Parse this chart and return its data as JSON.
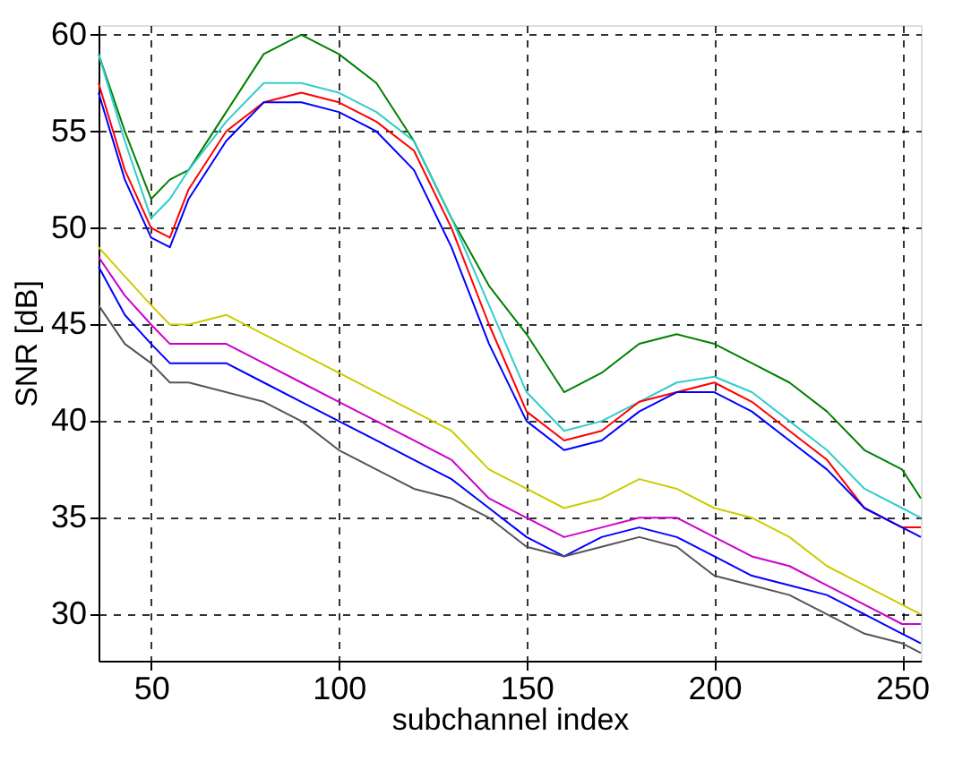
{
  "chart_data": {
    "type": "line",
    "xlabel": "subchannel index",
    "ylabel": "SNR [dB]",
    "x": [
      36,
      43,
      50,
      55,
      60,
      70,
      80,
      90,
      100,
      110,
      120,
      130,
      140,
      150,
      160,
      170,
      180,
      190,
      200,
      210,
      220,
      230,
      240,
      250,
      255
    ],
    "xlim": [
      36,
      255
    ],
    "xticks": [
      50,
      100,
      150,
      200,
      250
    ],
    "ylim": [
      27.6,
      60.5
    ],
    "yticks": [
      30,
      35,
      40,
      45,
      50,
      55,
      60
    ],
    "grid": true,
    "line_style": "solid",
    "marker": "none",
    "series": [
      {
        "color": "#008000",
        "values": [
          59,
          55,
          51.5,
          52.5,
          53,
          56,
          59,
          60,
          59,
          57.5,
          54.5,
          50.5,
          47,
          44.5,
          41.5,
          42.5,
          44,
          44.5,
          44,
          43,
          42,
          40.5,
          38.5,
          37.5,
          36
        ]
      },
      {
        "color": "#33cccc",
        "values": [
          59,
          54.5,
          50.5,
          51.5,
          53,
          55.5,
          57.5,
          57.5,
          57,
          56,
          54.5,
          50.5,
          46,
          41.5,
          39.5,
          40,
          41,
          42,
          42.3,
          41.5,
          40,
          38.5,
          36.5,
          35.5,
          35
        ]
      },
      {
        "color": "#ff0000",
        "values": [
          57.5,
          53,
          50,
          49.5,
          52,
          55,
          56.5,
          57,
          56.5,
          55.5,
          54,
          50,
          45,
          40.5,
          39,
          39.5,
          41,
          41.5,
          42,
          41,
          39.5,
          38,
          35.5,
          34.5,
          34.5
        ]
      },
      {
        "color": "#0000ff",
        "values": [
          57,
          52.5,
          49.5,
          49,
          51.5,
          54.5,
          56.5,
          56.5,
          56,
          55,
          53,
          49,
          44,
          40,
          38.5,
          39,
          40.5,
          41.5,
          41.5,
          40.5,
          39,
          37.5,
          35.5,
          34.5,
          34
        ]
      },
      {
        "color": "#cccc00",
        "values": [
          49,
          47.5,
          46,
          45,
          45,
          45.5,
          44.5,
          43.5,
          42.5,
          41.5,
          40.5,
          39.5,
          37.5,
          36.5,
          35.5,
          36,
          37,
          36.5,
          35.5,
          35,
          34,
          32.5,
          31.5,
          30.5,
          30
        ]
      },
      {
        "color": "#cc00cc",
        "values": [
          48.5,
          46.5,
          45,
          44,
          44,
          44,
          43,
          42,
          41,
          40,
          39,
          38,
          36,
          35,
          34,
          34.5,
          35,
          35,
          34,
          33,
          32.5,
          31.5,
          30.5,
          29.5,
          29.5
        ]
      },
      {
        "color": "#0000ff",
        "values": [
          48,
          45.5,
          44,
          43,
          43,
          43,
          42,
          41,
          40,
          39,
          38,
          37,
          35.5,
          34,
          33,
          34,
          34.5,
          34,
          33,
          32,
          31.5,
          31,
          30,
          29,
          28.5
        ]
      },
      {
        "color": "#555555",
        "values": [
          46,
          44,
          43,
          42,
          42,
          41.5,
          41,
          40,
          38.5,
          37.5,
          36.5,
          36,
          35,
          33.5,
          33,
          33.5,
          34,
          33.5,
          32,
          31.5,
          31,
          30,
          29,
          28.5,
          28
        ]
      }
    ]
  }
}
